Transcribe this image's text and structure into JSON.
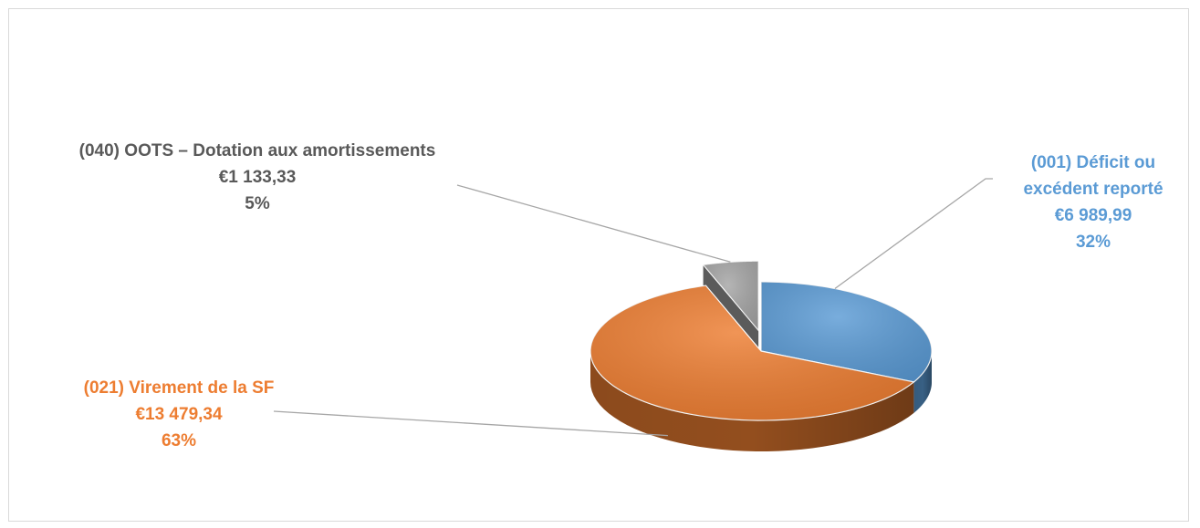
{
  "chart_data": {
    "type": "pie",
    "title": "",
    "slices": [
      {
        "label": "(001) Déficit ou excédent reporté",
        "label_lines": [
          "(001) Déficit ou",
          "excédent reporté"
        ],
        "value_text": "€6 989,99",
        "percent_text": "32%",
        "value": 6989.99,
        "percent": 32,
        "color": "#5b9bd5",
        "text_color": "#5b9bd5",
        "exploded": false
      },
      {
        "label": "(021) Virement de la SF",
        "label_lines": [
          "(021) Virement de la SF"
        ],
        "value_text": "€13 479,34",
        "percent_text": "63%",
        "value": 13479.34,
        "percent": 63,
        "color": "#ed7d31",
        "text_color": "#ed7d31",
        "exploded": false
      },
      {
        "label": "(040) OOTS – Dotation aux amortissements",
        "label_lines": [
          "(040) OOTS – Dotation aux amortissements"
        ],
        "value_text": "€1 133,33",
        "percent_text": "5%",
        "value": 1133.33,
        "percent": 5,
        "color": "#a5a5a5",
        "text_color": "#595959",
        "exploded": true
      }
    ],
    "start_angle_deg": 0,
    "direction": "clockwise",
    "style": "3d-pie",
    "legend": "none",
    "data_labels": "outside-with-leader-lines"
  }
}
